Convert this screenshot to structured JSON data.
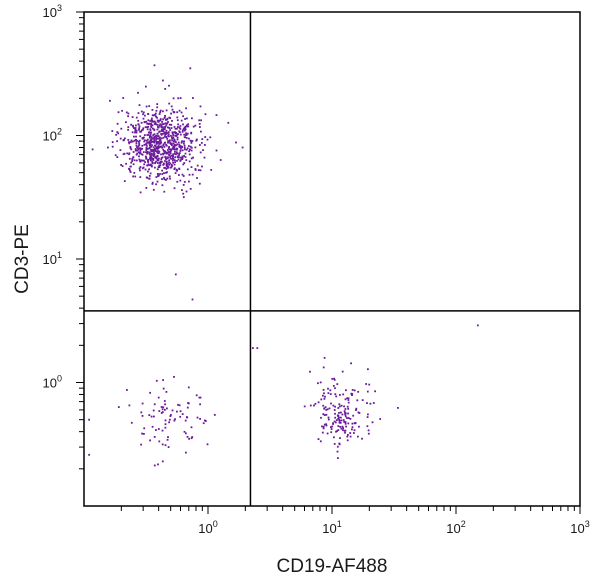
{
  "chart_data": {
    "type": "scatter",
    "title": "",
    "xlabel": "CD19-AF488",
    "ylabel": "CD3-PE",
    "xscale": "log",
    "yscale": "log",
    "xlim": [
      0.1,
      1000
    ],
    "ylim": [
      0.1,
      1000
    ],
    "x_ticks": [
      {
        "base": "10",
        "exp": "0",
        "value": 1
      },
      {
        "base": "10",
        "exp": "1",
        "value": 10
      },
      {
        "base": "10",
        "exp": "2",
        "value": 100
      },
      {
        "base": "10",
        "exp": "3",
        "value": 1000
      }
    ],
    "y_ticks": [
      {
        "base": "10",
        "exp": "0",
        "value": 1
      },
      {
        "base": "10",
        "exp": "1",
        "value": 10
      },
      {
        "base": "10",
        "exp": "2",
        "value": 100
      },
      {
        "base": "10",
        "exp": "3",
        "value": 1000
      }
    ],
    "grid": false,
    "quadrant_gates": {
      "x": 2.2,
      "y": 3.8
    },
    "point_color": "#6a1b9a",
    "populations": [
      {
        "count": 850,
        "x_center": 0.42,
        "x_spread": 0.16,
        "y_center": 85,
        "y_spread": 0.16
      },
      {
        "count": 90,
        "x_center": 0.45,
        "x_spread": 0.16,
        "y_center": 0.5,
        "y_spread": 0.15
      },
      {
        "count": 180,
        "x_center": 12,
        "x_spread": 0.12,
        "y_center": 0.55,
        "y_spread": 0.14
      }
    ],
    "outliers": [
      {
        "x": 0.75,
        "y": 4.7
      },
      {
        "x": 0.55,
        "y": 7.5
      },
      {
        "x": 2.5,
        "y": 1.9
      },
      {
        "x": 2.3,
        "y": 1.9
      },
      {
        "x": 150,
        "y": 2.9
      },
      {
        "x": 0.11,
        "y": 0.5
      },
      {
        "x": 0.11,
        "y": 0.26
      },
      {
        "x": 1.9,
        "y": 80
      },
      {
        "x": 0.72,
        "y": 350
      },
      {
        "x": 0.37,
        "y": 370
      }
    ]
  }
}
